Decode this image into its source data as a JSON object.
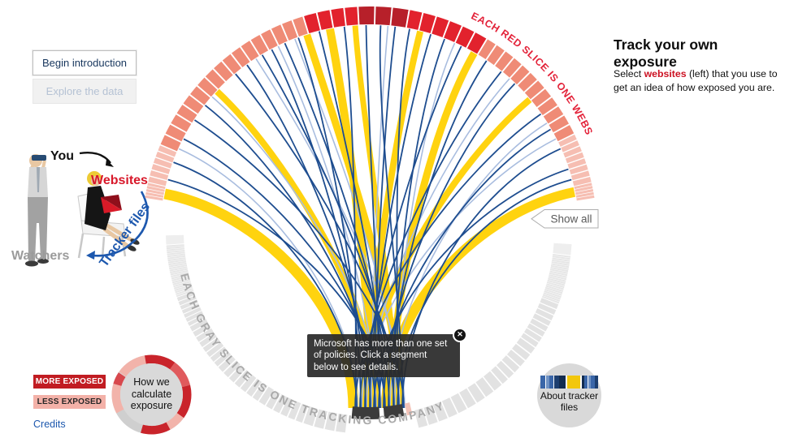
{
  "buttons": {
    "begin": "Begin introduction",
    "explore": "Explore the data",
    "show_all": "Show all"
  },
  "illustration": {
    "you": "You",
    "websites": "Websites",
    "tracker_files": "Tracker files",
    "watchers": "Watchers"
  },
  "tooltip": {
    "text": "Microsoft  has more than one set of policies. Click a segment below to see details.",
    "close": "✕"
  },
  "right_panel": {
    "title": "Track your own exposure",
    "body_pre": "Select ",
    "body_link": "websites",
    "body_post": " (left) that you use to get an idea of how exposed you are."
  },
  "legend": {
    "more": "MORE EXPOSED",
    "less": "LESS EXPOSED",
    "credits": "Credits"
  },
  "circles": {
    "how_we": {
      "line1": "How we",
      "line2": "calculate",
      "line3": "exposure",
      "segments": [
        {
          "from": -55,
          "to": -10,
          "color": "#f2b3aa"
        },
        {
          "from": -10,
          "to": 36,
          "color": "#c9242b"
        },
        {
          "from": 36,
          "to": 76,
          "color": "#e05a5d"
        },
        {
          "from": 76,
          "to": 126,
          "color": "#c9242b"
        },
        {
          "from": 126,
          "to": 152,
          "color": "#f2b3aa"
        },
        {
          "from": 152,
          "to": 196,
          "color": "#c9242b"
        },
        {
          "from": 196,
          "to": 242,
          "color": "#cfcfcf"
        },
        {
          "from": 242,
          "to": 286,
          "color": "#f2b3aa"
        },
        {
          "from": 286,
          "to": 304,
          "color": "#d8484d"
        }
      ]
    },
    "about": {
      "line1": "About tracker",
      "line2": "files",
      "bars": [
        [
          "#3a66a8",
          6
        ],
        [
          "#ffffff",
          1
        ],
        [
          "#6f92c4",
          4
        ],
        [
          "#3a66a8",
          5
        ],
        [
          "#ffffff",
          1
        ],
        [
          "#1d3f70",
          6
        ],
        [
          "#132c50",
          8
        ],
        [
          "#ffffff",
          2
        ],
        [
          "#f2c70d",
          16
        ],
        [
          "#ffffff",
          2
        ],
        [
          "#132c50",
          3
        ],
        [
          "#3a66a8",
          4
        ],
        [
          "#ffffff",
          1
        ],
        [
          "#6f92c4",
          3
        ],
        [
          "#3a66a8",
          5
        ],
        [
          "#1d3f70",
          4
        ]
      ]
    }
  },
  "colors": {
    "yellow": "#ffd30f",
    "navy": "#1e4d8f",
    "lightblue": "#a9bddf",
    "pink": "#f6beb2",
    "salmon": "#ef8b76",
    "red": "#e2222d",
    "darkred": "#b7202a",
    "gray": "#e2e2e2",
    "hair": "#e6e6e6",
    "tip": "#eeeeee",
    "dark": "#3b3b3b",
    "pinksliver": "#f3c3b8",
    "top_label": "#e32239",
    "bottom_label": "#a9a9a9"
  },
  "chart_data": {
    "type": "chord",
    "description": "Radial exposure diagram: each red slice on the top arc is one website, each gray slice on the bottom arc is one tracking company. Yellow and blue chords link websites to the selected tracking company (two dark highlighted segments at bottom center). Redder top slices = more exposed.",
    "top_arc": {
      "label": "EACH RED SLICE IS ONE WEBSITE",
      "groups": [
        {
          "from": -81,
          "to": -77,
          "n": 5,
          "color": "pink"
        },
        {
          "from": -77,
          "to": -67,
          "n": 6,
          "color": "pink"
        },
        {
          "from": -67,
          "to": -17,
          "n": 17,
          "color": "salmon"
        },
        {
          "from": -17,
          "to": -3,
          "n": 4,
          "color": "red"
        },
        {
          "from": -3,
          "to": 10,
          "n": 3,
          "color": "darkred"
        },
        {
          "from": 10,
          "to": 31,
          "n": 6,
          "color": "red"
        },
        {
          "from": 31,
          "to": 64,
          "n": 12,
          "color": "salmon"
        },
        {
          "from": 64,
          "to": 77,
          "n": 8,
          "color": "pink"
        },
        {
          "from": 77,
          "to": 81,
          "n": 5,
          "color": "pink"
        }
      ]
    },
    "bottom_arc": {
      "label": "EACH GRAY SLICE IS ONE TRACKING COMPANY",
      "groups": [
        {
          "from": -89,
          "to": -86,
          "n": 1,
          "color": "tip"
        },
        {
          "from": -86,
          "to": -71,
          "n": 26,
          "color": "hair"
        },
        {
          "from": -71,
          "to": -62,
          "n": 7,
          "color": "gray"
        },
        {
          "from": -62,
          "to": -48,
          "n": 8,
          "color": "gray"
        },
        {
          "from": -48,
          "to": -33,
          "n": 7,
          "color": "gray"
        },
        {
          "from": -33,
          "to": -19,
          "n": 6,
          "color": "gray"
        },
        {
          "from": -19,
          "to": -6.5,
          "n": 4,
          "color": "gray"
        },
        {
          "from": -5.5,
          "to": 3.5,
          "n": 1,
          "color": "dark"
        },
        {
          "from": 4.5,
          "to": 11,
          "n": 1,
          "color": "dark"
        },
        {
          "from": 11.5,
          "to": 13.5,
          "n": 1,
          "color": "pinksliver"
        },
        {
          "from": 14,
          "to": 26,
          "n": 4,
          "color": "gray"
        },
        {
          "from": 26,
          "to": 41,
          "n": 5,
          "color": "gray"
        },
        {
          "from": 41,
          "to": 55,
          "n": 6,
          "color": "gray"
        },
        {
          "from": 55,
          "to": 69,
          "n": 8,
          "color": "gray"
        },
        {
          "from": 69,
          "to": 83,
          "n": 24,
          "color": "hair"
        },
        {
          "from": 83,
          "to": 86.5,
          "n": 1,
          "color": "tip"
        }
      ]
    },
    "chords": [
      [
        -79,
        "yellow",
        13
      ],
      [
        -47,
        "yellow",
        8
      ],
      [
        -17.5,
        "yellow",
        9
      ],
      [
        -11,
        "yellow",
        10
      ],
      [
        -4,
        "yellow",
        7
      ],
      [
        14,
        "yellow",
        8
      ],
      [
        30,
        "yellow",
        9
      ],
      [
        50,
        "yellow",
        8
      ],
      [
        78.5,
        "yellow",
        12
      ],
      [
        -66,
        "lightblue",
        1.6
      ],
      [
        -49,
        "lightblue",
        1.6
      ],
      [
        -33,
        "lightblue",
        1.6
      ],
      [
        -26,
        "lightblue",
        1.6
      ],
      [
        -21,
        "lightblue",
        1.6
      ],
      [
        5,
        "lightblue",
        1.6
      ],
      [
        24,
        "lightblue",
        1.6
      ],
      [
        42,
        "lightblue",
        1.6
      ],
      [
        58,
        "lightblue",
        1.6
      ],
      [
        63,
        "lightblue",
        1.6
      ],
      [
        -75,
        "navy",
        1.8
      ],
      [
        -70,
        "navy",
        1.8
      ],
      [
        -63,
        "navy",
        1.8
      ],
      [
        -57,
        "navy",
        1.8
      ],
      [
        -52,
        "navy",
        1.8
      ],
      [
        -40,
        "navy",
        1.8
      ],
      [
        -36,
        "navy",
        1.8
      ],
      [
        -31,
        "navy",
        1.8
      ],
      [
        -28,
        "navy",
        1.8
      ],
      [
        -24,
        "navy",
        1.8
      ],
      [
        -20,
        "navy",
        1.8
      ],
      [
        -14,
        "navy",
        1.8
      ],
      [
        -7,
        "navy",
        1.8
      ],
      [
        -1,
        "navy",
        1.8
      ],
      [
        3,
        "navy",
        1.8
      ],
      [
        7,
        "navy",
        1.8
      ],
      [
        11,
        "navy",
        1.8
      ],
      [
        17,
        "navy",
        1.8
      ],
      [
        21,
        "navy",
        1.8
      ],
      [
        26,
        "navy",
        1.8
      ],
      [
        34,
        "navy",
        1.8
      ],
      [
        39,
        "navy",
        1.8
      ],
      [
        44,
        "navy",
        1.8
      ],
      [
        55,
        "navy",
        1.8
      ],
      [
        60,
        "navy",
        1.8
      ],
      [
        66,
        "navy",
        1.8
      ],
      [
        72,
        "navy",
        1.8
      ],
      [
        75,
        "navy",
        1.8
      ]
    ]
  }
}
